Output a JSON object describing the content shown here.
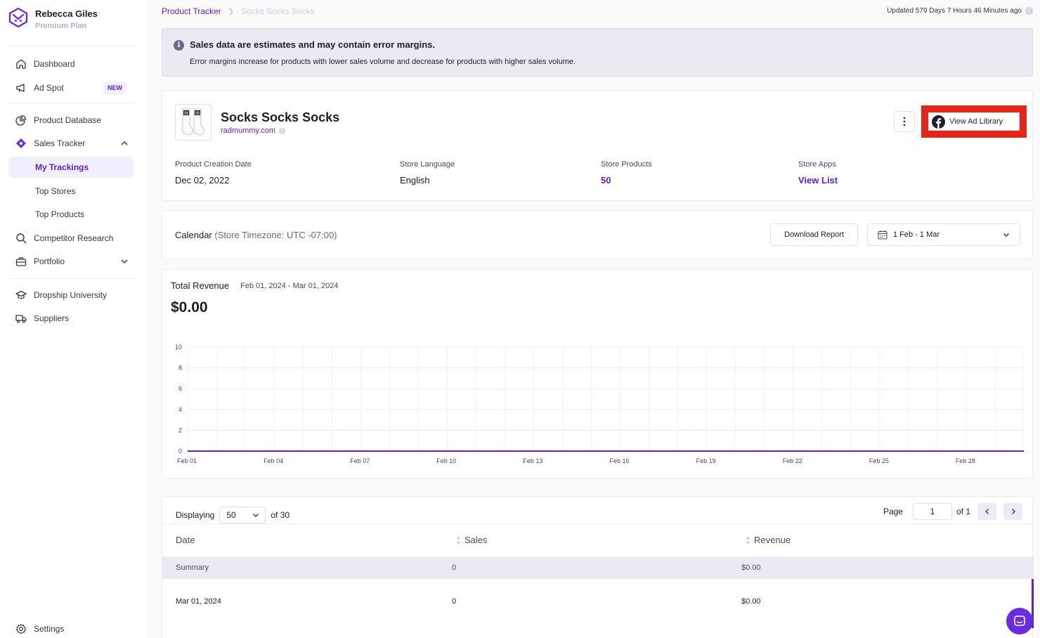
{
  "profile": {
    "name": "Rebecca Giles",
    "plan": "Premium Plan"
  },
  "nav": {
    "dashboard": "Dashboard",
    "ad_spot": "Ad Spot",
    "ad_spot_badge": "NEW",
    "product_database": "Product Database",
    "sales_tracker": "Sales Tracker",
    "my_trackings": "My Trackings",
    "top_stores": "Top Stores",
    "top_products": "Top Products",
    "competitor_research": "Competitor Research",
    "portfolio": "Portfolio",
    "dropship_university": "Dropship University",
    "suppliers": "Suppliers",
    "settings": "Settings"
  },
  "breadcrumb": {
    "root": "Product Tracker",
    "current": "Socks Socks Socks"
  },
  "updated": "Updated 579 Days 7 Hours 46 Minutes ago",
  "alert": {
    "title": "Sales data are estimates and may contain error margins.",
    "text": "Error margins increase for products with lower sales volume and decrease for products with higher sales volume."
  },
  "product": {
    "title": "Socks Socks Socks",
    "store": "radmummy.com",
    "ad_library": "View Ad Library",
    "meta": [
      {
        "label": "Product Creation Date",
        "value": "Dec 02, 2022"
      },
      {
        "label": "Store Language",
        "value": "English"
      },
      {
        "label": "Store Products",
        "value": "50"
      },
      {
        "label": "Store Apps",
        "value": "View List"
      }
    ]
  },
  "calendar": {
    "title": "Calendar",
    "timezone": "(Store Timezone: UTC -07:00)",
    "download": "Download Report",
    "range": "1 Feb - 1 Mar"
  },
  "revenue": {
    "title": "Total Revenue",
    "range": "Feb 01, 2024 - Mar 01, 2024",
    "value": "$0.00"
  },
  "chart_data": {
    "type": "line",
    "title": "",
    "xlabel": "",
    "ylabel": "",
    "x": [
      "Feb 01",
      "Feb 02",
      "Feb 03",
      "Feb 04",
      "Feb 05",
      "Feb 06",
      "Feb 07",
      "Feb 08",
      "Feb 09",
      "Feb 10",
      "Feb 11",
      "Feb 12",
      "Feb 13",
      "Feb 14",
      "Feb 15",
      "Feb 16",
      "Feb 17",
      "Feb 18",
      "Feb 19",
      "Feb 20",
      "Feb 21",
      "Feb 22",
      "Feb 23",
      "Feb 24",
      "Feb 25",
      "Feb 26",
      "Feb 27",
      "Feb 28",
      "Feb 29",
      "Mar 01"
    ],
    "x_tick_labels": [
      "Feb 01",
      "Feb 04",
      "Feb 07",
      "Feb 10",
      "Feb 13",
      "Feb 16",
      "Feb 19",
      "Feb 22",
      "Feb 25",
      "Feb 28"
    ],
    "y_ticks": [
      0,
      2,
      4,
      6,
      8,
      10
    ],
    "ylim": [
      0,
      10
    ],
    "series": [
      {
        "values": [
          0,
          0,
          0,
          0,
          0,
          0,
          0,
          0,
          0,
          0,
          0,
          0,
          0,
          0,
          0,
          0,
          0,
          0,
          0,
          0,
          0,
          0,
          0,
          0,
          0,
          0,
          0,
          0,
          0,
          0
        ]
      }
    ],
    "grid": true,
    "color": "#5b21d6"
  },
  "table": {
    "displaying": "Displaying",
    "per_page": "50",
    "of_total": "of 30",
    "page_label": "Page",
    "page": "1",
    "of_pages": "of 1",
    "headers": {
      "date": "Date",
      "sales": "Sales",
      "revenue": "Revenue"
    },
    "summary": {
      "date": "Summary",
      "sales": "0",
      "revenue": "$0.00"
    },
    "rows": [
      {
        "date": "Mar 01, 2024",
        "sales": "0",
        "revenue": "$0.00"
      }
    ]
  }
}
